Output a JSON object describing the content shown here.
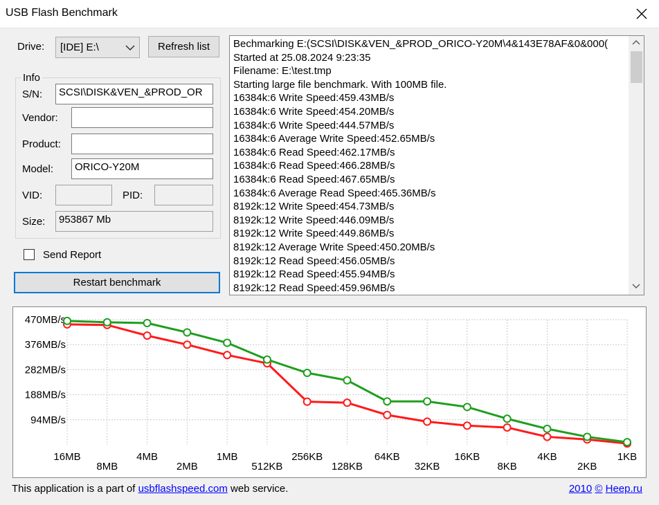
{
  "window": {
    "title": "USB Flash Benchmark"
  },
  "drive": {
    "label": "Drive:",
    "selected": "[IDE] E:\\",
    "refresh_label": "Refresh list"
  },
  "info": {
    "group_label": "Info",
    "sn_label": "S/N:",
    "sn_value": "SCSI\\DISK&VEN_&PROD_OR",
    "vendor_label": "Vendor:",
    "vendor_value": "",
    "product_label": "Product:",
    "product_value": "",
    "model_label": "Model:",
    "model_value": "ORICO-Y20M",
    "vid_label": "VID:",
    "vid_value": "",
    "pid_label": "PID:",
    "pid_value": "",
    "size_label": "Size:",
    "size_value": "953867 Mb"
  },
  "send_report": {
    "label": "Send Report",
    "checked": false
  },
  "restart_label": "Restart benchmark",
  "log_lines": [
    "Bechmarking E:(SCSI\\DISK&VEN_&PROD_ORICO-Y20M\\4&143E78AF&0&000(",
    "Started at 25.08.2024 9:23:35",
    "Filename: E:\\test.tmp",
    "Starting large file benchmark. With 100MB file.",
    "16384k:6 Write Speed:459.43MB/s",
    "16384k:6 Write Speed:454.20MB/s",
    "16384k:6 Write Speed:444.57MB/s",
    "16384k:6 Average Write Speed:452.65MB/s",
    "16384k:6 Read Speed:462.17MB/s",
    "16384k:6 Read Speed:466.28MB/s",
    "16384k:6 Read Speed:467.65MB/s",
    "16384k:6 Average Read Speed:465.36MB/s",
    "8192k:12 Write Speed:454.73MB/s",
    "8192k:12 Write Speed:446.09MB/s",
    "8192k:12 Write Speed:449.86MB/s",
    "8192k:12 Average Write Speed:450.20MB/s",
    "8192k:12 Read Speed:456.05MB/s",
    "8192k:12 Read Speed:455.94MB/s",
    "8192k:12 Read Speed:459.96MB/s"
  ],
  "chart_data": {
    "type": "line",
    "categories": [
      "16MB",
      "8MB",
      "4MB",
      "2MB",
      "1MB",
      "512KB",
      "256KB",
      "128KB",
      "64KB",
      "32KB",
      "16KB",
      "8KB",
      "4KB",
      "2KB",
      "1KB"
    ],
    "yticks": [
      94,
      188,
      282,
      376,
      470
    ],
    "ytick_labels": [
      "94MB/s",
      "188MB/s",
      "282MB/s",
      "376MB/s",
      "470MB/s"
    ],
    "ylim": [
      0,
      470
    ],
    "grid": true,
    "series": [
      {
        "color": "#1e9e1e",
        "values": [
          465,
          460,
          457,
          422,
          383,
          320,
          270,
          242,
          163,
          163,
          142,
          98,
          60,
          30,
          10
        ]
      },
      {
        "color": "#ff1a1a",
        "values": [
          452,
          450,
          410,
          376,
          337,
          306,
          162,
          158,
          112,
          87,
          72,
          65,
          30,
          20,
          5
        ]
      }
    ]
  },
  "footer": {
    "text_before": "This application is a part of ",
    "link": "usbflashspeed.com",
    "text_after": " web service.",
    "year_link": "2010",
    "copyright_sign": "©",
    "author_link": "Heep.ru"
  }
}
